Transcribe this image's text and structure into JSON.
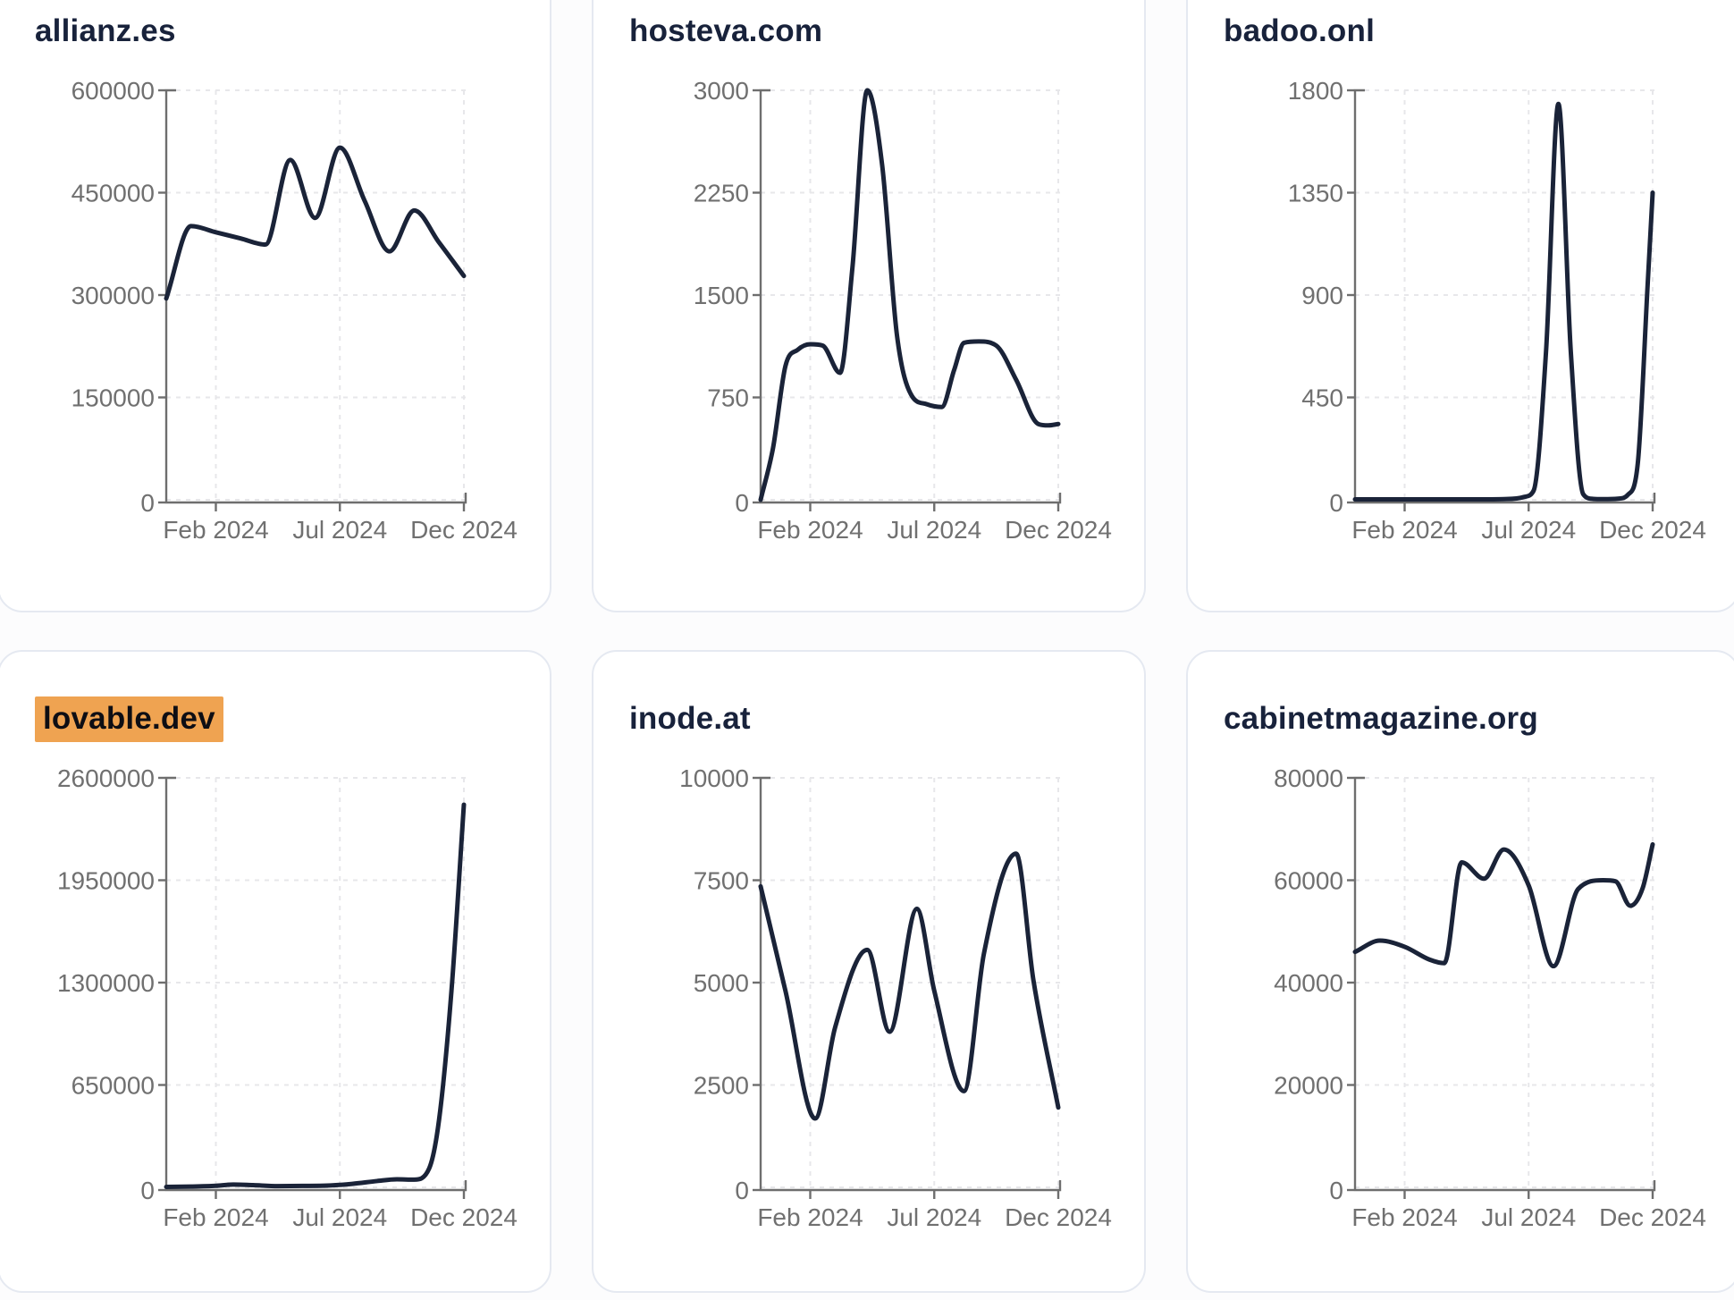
{
  "page": {
    "background_color": "#fcfcfd",
    "card_background": "#ffffff",
    "card_border_color": "#e5e9f1",
    "line_color": "#1a2338",
    "axis_color": "#6e6e6e",
    "grid_color": "#e7e7ea",
    "tick_text_color": "#707070",
    "title_text_color": "#18223b",
    "highlight_color": "#efa351",
    "highlight_text_color": "#0e0e14"
  },
  "chart_data": [
    {
      "type": "line",
      "title": "allianz.es",
      "highlighted": false,
      "xlabel": "",
      "ylabel": "",
      "x_domain_months": [
        0,
        12
      ],
      "x_ticks": [
        {
          "label": "Feb 2024",
          "month": 2
        },
        {
          "label": "Jul 2024",
          "month": 7
        },
        {
          "label": "Dec 2024",
          "month": 12
        }
      ],
      "ylim": [
        0,
        600000
      ],
      "y_ticks": [
        0,
        150000,
        300000,
        450000,
        600000
      ],
      "grid": true,
      "legend": "none",
      "points": [
        [
          0,
          295000
        ],
        [
          1,
          401000
        ],
        [
          2,
          392000
        ],
        [
          3,
          383000
        ],
        [
          4,
          374000
        ],
        [
          5,
          498000
        ],
        [
          6,
          413000
        ],
        [
          7,
          516000
        ],
        [
          8,
          438000
        ],
        [
          9,
          364000
        ],
        [
          10,
          424000
        ],
        [
          11,
          377000
        ],
        [
          12,
          328000
        ]
      ]
    },
    {
      "type": "line",
      "title": "hosteva.com",
      "highlighted": false,
      "xlabel": "",
      "ylabel": "",
      "x_domain_months": [
        0,
        12
      ],
      "x_ticks": [
        {
          "label": "Feb 2024",
          "month": 2
        },
        {
          "label": "Jul 2024",
          "month": 7
        },
        {
          "label": "Dec 2024",
          "month": 12
        }
      ],
      "ylim": [
        0,
        3000
      ],
      "y_ticks": [
        0,
        750,
        1500,
        2250,
        3000
      ],
      "grid": true,
      "legend": "none",
      "points": [
        [
          0,
          0
        ],
        [
          0.5,
          380
        ],
        [
          1,
          980
        ],
        [
          1.5,
          1100
        ],
        [
          2,
          1140
        ],
        [
          2.5,
          1130
        ],
        [
          3.2,
          930
        ],
        [
          3.7,
          1700
        ],
        [
          4.3,
          3000
        ],
        [
          4.9,
          2450
        ],
        [
          5.5,
          1200
        ],
        [
          6.1,
          760
        ],
        [
          6.7,
          700
        ],
        [
          7.3,
          680
        ],
        [
          7.8,
          950
        ],
        [
          8.2,
          1150
        ],
        [
          8.8,
          1160
        ],
        [
          9.5,
          1130
        ],
        [
          10.3,
          880
        ],
        [
          11.2,
          555
        ],
        [
          11.6,
          545
        ],
        [
          12,
          555
        ]
      ]
    },
    {
      "type": "line",
      "title": "badoo.onl",
      "highlighted": false,
      "xlabel": "",
      "ylabel": "",
      "x_domain_months": [
        0,
        12
      ],
      "x_ticks": [
        {
          "label": "Feb 2024",
          "month": 2
        },
        {
          "label": "Jul 2024",
          "month": 7
        },
        {
          "label": "Dec 2024",
          "month": 12
        }
      ],
      "ylim": [
        0,
        1800
      ],
      "y_ticks": [
        0,
        450,
        900,
        1350,
        1800
      ],
      "grid": true,
      "legend": "none",
      "points": [
        [
          0,
          2
        ],
        [
          1,
          2
        ],
        [
          2,
          2
        ],
        [
          3,
          2
        ],
        [
          4,
          2
        ],
        [
          5,
          2
        ],
        [
          6,
          3
        ],
        [
          6.8,
          12
        ],
        [
          7.2,
          40
        ],
        [
          7.7,
          650
        ],
        [
          8.2,
          1740
        ],
        [
          8.7,
          650
        ],
        [
          9.2,
          25
        ],
        [
          9.6,
          4
        ],
        [
          10,
          3
        ],
        [
          10.6,
          5
        ],
        [
          11,
          22
        ],
        [
          11.4,
          160
        ],
        [
          11.8,
          950
        ],
        [
          12,
          1350
        ]
      ]
    },
    {
      "type": "line",
      "title": "lovable.dev",
      "highlighted": true,
      "xlabel": "",
      "ylabel": "",
      "x_domain_months": [
        0,
        12
      ],
      "x_ticks": [
        {
          "label": "Feb 2024",
          "month": 2
        },
        {
          "label": "Jul 2024",
          "month": 7
        },
        {
          "label": "Dec 2024",
          "month": 12
        }
      ],
      "ylim": [
        0,
        2600000
      ],
      "y_ticks": [
        0,
        650000,
        1300000,
        1950000,
        2600000
      ],
      "grid": true,
      "legend": "none",
      "points": [
        [
          0,
          3000
        ],
        [
          1,
          5000
        ],
        [
          2,
          10000
        ],
        [
          2.7,
          18000
        ],
        [
          3.5,
          14000
        ],
        [
          4.5,
          8000
        ],
        [
          5.5,
          9000
        ],
        [
          6.5,
          11000
        ],
        [
          7.5,
          22000
        ],
        [
          8.5,
          40000
        ],
        [
          9.3,
          51000
        ],
        [
          10,
          49000
        ],
        [
          10.6,
          120000
        ],
        [
          11,
          430000
        ],
        [
          11.5,
          1250000
        ],
        [
          12,
          2430000
        ]
      ]
    },
    {
      "type": "line",
      "title": "inode.at",
      "highlighted": false,
      "xlabel": "",
      "ylabel": "",
      "x_domain_months": [
        0,
        12
      ],
      "x_ticks": [
        {
          "label": "Feb 2024",
          "month": 2
        },
        {
          "label": "Jul 2024",
          "month": 7
        },
        {
          "label": "Dec 2024",
          "month": 12
        }
      ],
      "ylim": [
        0,
        10000
      ],
      "y_ticks": [
        0,
        2500,
        5000,
        7500,
        10000
      ],
      "grid": true,
      "legend": "none",
      "points": [
        [
          0,
          7350
        ],
        [
          1,
          4800
        ],
        [
          2.2,
          1680
        ],
        [
          3,
          3900
        ],
        [
          4.3,
          5800
        ],
        [
          5.2,
          3800
        ],
        [
          6.3,
          6800
        ],
        [
          7,
          4800
        ],
        [
          8.2,
          2350
        ],
        [
          9,
          5700
        ],
        [
          10.3,
          8150
        ],
        [
          11,
          5050
        ],
        [
          12,
          1950
        ]
      ]
    },
    {
      "type": "line",
      "title": "cabinetmagazine.org",
      "highlighted": false,
      "xlabel": "",
      "ylabel": "",
      "x_domain_months": [
        0,
        12
      ],
      "x_ticks": [
        {
          "label": "Feb 2024",
          "month": 2
        },
        {
          "label": "Jul 2024",
          "month": 7
        },
        {
          "label": "Dec 2024",
          "month": 12
        }
      ],
      "ylim": [
        0,
        80000
      ],
      "y_ticks": [
        0,
        20000,
        40000,
        60000,
        80000
      ],
      "grid": true,
      "legend": "none",
      "points": [
        [
          0,
          46000
        ],
        [
          1,
          48200
        ],
        [
          2,
          47000
        ],
        [
          3,
          44500
        ],
        [
          3.6,
          43800
        ],
        [
          4.3,
          63500
        ],
        [
          5.2,
          60300
        ],
        [
          6,
          66000
        ],
        [
          7,
          59000
        ],
        [
          8,
          43200
        ],
        [
          9,
          58300
        ],
        [
          10,
          60000
        ],
        [
          10.5,
          59800
        ],
        [
          11.1,
          55000
        ],
        [
          11.6,
          58500
        ],
        [
          12,
          67000
        ]
      ]
    }
  ]
}
